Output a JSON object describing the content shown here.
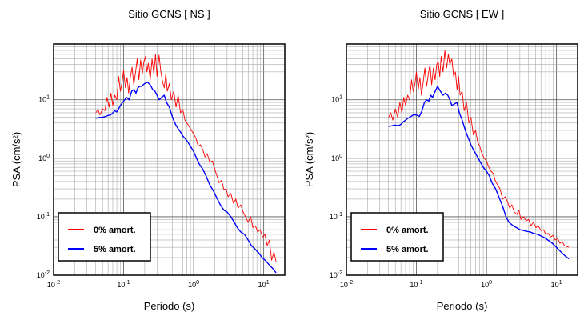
{
  "chart_data": [
    {
      "type": "line",
      "title": "Sitio GCNS [ NS ]",
      "xlabel": "Periodo (s)",
      "ylabel": "PSA (cm/s²)",
      "x_scale": "log",
      "y_scale": "log",
      "xlim": [
        0.01,
        20
      ],
      "ylim": [
        0.01,
        90
      ],
      "grid": true,
      "legend_position": "bottom-left",
      "x_ticks": [
        {
          "base": "10",
          "exp": "-2"
        },
        {
          "base": "10",
          "exp": "-1"
        },
        {
          "base": "10",
          "exp": "0"
        },
        {
          "base": "10",
          "exp": "1"
        }
      ],
      "y_ticks": [
        {
          "base": "10",
          "exp": "-2"
        },
        {
          "base": "10",
          "exp": "-1"
        },
        {
          "base": "10",
          "exp": "0"
        },
        {
          "base": "10",
          "exp": "1"
        }
      ],
      "series": [
        {
          "name": "0% amort.",
          "color": "#ff0000",
          "x": [
            0.04,
            0.043,
            0.046,
            0.05,
            0.054,
            0.058,
            0.062,
            0.066,
            0.07,
            0.075,
            0.08,
            0.085,
            0.09,
            0.095,
            0.1,
            0.106,
            0.112,
            0.118,
            0.125,
            0.132,
            0.14,
            0.148,
            0.156,
            0.165,
            0.175,
            0.185,
            0.195,
            0.205,
            0.215,
            0.225,
            0.24,
            0.255,
            0.27,
            0.285,
            0.3,
            0.32,
            0.34,
            0.36,
            0.38,
            0.4,
            0.42,
            0.45,
            0.48,
            0.52,
            0.56,
            0.6,
            0.65,
            0.7,
            0.75,
            0.8,
            0.86,
            0.93,
            1.0,
            1.08,
            1.16,
            1.25,
            1.35,
            1.45,
            1.56,
            1.7,
            1.85,
            2.0,
            2.15,
            2.3,
            2.5,
            2.7,
            2.9,
            3.1,
            3.4,
            3.7,
            4.0,
            4.3,
            4.7,
            5.1,
            5.5,
            6.0,
            6.5,
            7.0,
            7.6,
            8.2,
            8.9,
            9.6,
            10.4,
            11.2,
            12.0,
            13.0,
            14.0,
            15.0
          ],
          "y": [
            6,
            6.8,
            5.5,
            7,
            6.5,
            11,
            7.5,
            13,
            8,
            12,
            10,
            25,
            14,
            20,
            32,
            16,
            24,
            13,
            25,
            36,
            18,
            30,
            50,
            22,
            48,
            28,
            45,
            55,
            30,
            42,
            22,
            50,
            28,
            60,
            25,
            58,
            30,
            20,
            16,
            28,
            14,
            19,
            10,
            14,
            7.5,
            12,
            6,
            6.8,
            4.5,
            4,
            3.5,
            3,
            2.6,
            2.2,
            1.6,
            1.7,
            1.4,
            1.05,
            1.2,
            0.85,
            0.9,
            0.65,
            0.5,
            0.38,
            0.42,
            0.29,
            0.3,
            0.22,
            0.25,
            0.17,
            0.2,
            0.14,
            0.16,
            0.12,
            0.1,
            0.08,
            0.1,
            0.065,
            0.07,
            0.055,
            0.06,
            0.045,
            0.05,
            0.032,
            0.04,
            0.018,
            0.025,
            0.017
          ]
        },
        {
          "name": "5% amort.",
          "color": "#0000ff",
          "x": [
            0.04,
            0.045,
            0.05,
            0.055,
            0.06,
            0.065,
            0.07,
            0.075,
            0.08,
            0.09,
            0.1,
            0.11,
            0.12,
            0.13,
            0.14,
            0.15,
            0.16,
            0.17,
            0.18,
            0.2,
            0.22,
            0.24,
            0.26,
            0.28,
            0.3,
            0.32,
            0.35,
            0.38,
            0.41,
            0.45,
            0.5,
            0.55,
            0.6,
            0.65,
            0.7,
            0.8,
            0.9,
            1.0,
            1.1,
            1.2,
            1.35,
            1.5,
            1.7,
            1.9,
            2.1,
            2.4,
            2.7,
            3.0,
            3.4,
            3.8,
            4.2,
            4.7,
            5.3,
            6.0,
            6.7,
            7.5,
            8.5,
            9.5,
            10.5,
            12.0,
            13.5,
            15.0
          ],
          "y": [
            4.8,
            5,
            5,
            5.2,
            5.4,
            5.5,
            6,
            6.5,
            6.2,
            8,
            9.5,
            11,
            10,
            14,
            15,
            13,
            16,
            17,
            17,
            19,
            20,
            18,
            15,
            14,
            12,
            10,
            11,
            12,
            9,
            7.5,
            5,
            3.8,
            3.2,
            2.8,
            2.4,
            2,
            1.6,
            1.3,
            1.0,
            0.8,
            0.65,
            0.5,
            0.35,
            0.28,
            0.22,
            0.16,
            0.13,
            0.12,
            0.1,
            0.08,
            0.065,
            0.055,
            0.05,
            0.04,
            0.032,
            0.028,
            0.024,
            0.02,
            0.018,
            0.015,
            0.013,
            0.011
          ]
        }
      ]
    },
    {
      "type": "line",
      "title": "Sitio GCNS [ EW ]",
      "xlabel": "Periodo (s)",
      "ylabel": "PSA (cm/s²)",
      "x_scale": "log",
      "y_scale": "log",
      "xlim": [
        0.01,
        20
      ],
      "ylim": [
        0.01,
        90
      ],
      "grid": true,
      "legend_position": "bottom-left",
      "x_ticks": [
        {
          "base": "10",
          "exp": "-2"
        },
        {
          "base": "10",
          "exp": "-1"
        },
        {
          "base": "10",
          "exp": "0"
        },
        {
          "base": "10",
          "exp": "1"
        }
      ],
      "y_ticks": [
        {
          "base": "10",
          "exp": "-2"
        },
        {
          "base": "10",
          "exp": "-1"
        },
        {
          "base": "10",
          "exp": "0"
        },
        {
          "base": "10",
          "exp": "1"
        }
      ],
      "series": [
        {
          "name": "0% amort.",
          "color": "#ff0000",
          "x": [
            0.04,
            0.043,
            0.046,
            0.05,
            0.054,
            0.058,
            0.062,
            0.066,
            0.07,
            0.075,
            0.08,
            0.085,
            0.09,
            0.095,
            0.1,
            0.106,
            0.112,
            0.118,
            0.125,
            0.132,
            0.14,
            0.148,
            0.156,
            0.165,
            0.175,
            0.185,
            0.195,
            0.205,
            0.215,
            0.225,
            0.24,
            0.255,
            0.27,
            0.285,
            0.3,
            0.32,
            0.34,
            0.36,
            0.38,
            0.4,
            0.42,
            0.45,
            0.48,
            0.52,
            0.56,
            0.6,
            0.65,
            0.7,
            0.75,
            0.8,
            0.86,
            0.93,
            1.0,
            1.08,
            1.16,
            1.25,
            1.35,
            1.45,
            1.56,
            1.7,
            1.85,
            2.0,
            2.15,
            2.3,
            2.5,
            2.7,
            2.9,
            3.1,
            3.4,
            3.7,
            4.0,
            4.3,
            4.7,
            5.1,
            5.5,
            6.0,
            6.5,
            7.0,
            7.6,
            8.2,
            8.9,
            9.6,
            10.4,
            11.2,
            12.0,
            13.0,
            14.0,
            15.0
          ],
          "y": [
            5,
            6,
            4.5,
            7,
            5,
            9,
            6,
            11,
            8,
            12,
            10,
            22,
            14,
            18,
            30,
            15,
            24,
            12,
            20,
            35,
            17,
            28,
            40,
            18,
            35,
            22,
            40,
            45,
            25,
            55,
            30,
            70,
            35,
            60,
            40,
            50,
            25,
            30,
            15,
            25,
            12,
            14,
            6.5,
            9,
            4,
            5,
            2.5,
            3,
            1.9,
            1.6,
            1.2,
            1.0,
            0.9,
            0.7,
            0.6,
            0.55,
            0.4,
            0.35,
            0.3,
            0.2,
            0.22,
            0.18,
            0.14,
            0.16,
            0.12,
            0.11,
            0.13,
            0.09,
            0.1,
            0.085,
            0.09,
            0.07,
            0.08,
            0.065,
            0.07,
            0.058,
            0.06,
            0.05,
            0.052,
            0.045,
            0.048,
            0.04,
            0.042,
            0.035,
            0.038,
            0.032,
            0.031,
            0.03
          ]
        },
        {
          "name": "5% amort.",
          "color": "#0000ff",
          "x": [
            0.04,
            0.045,
            0.05,
            0.055,
            0.06,
            0.065,
            0.07,
            0.075,
            0.08,
            0.09,
            0.1,
            0.11,
            0.12,
            0.13,
            0.14,
            0.15,
            0.16,
            0.17,
            0.18,
            0.2,
            0.22,
            0.24,
            0.26,
            0.28,
            0.3,
            0.32,
            0.35,
            0.38,
            0.41,
            0.45,
            0.5,
            0.55,
            0.6,
            0.65,
            0.7,
            0.8,
            0.9,
            1.0,
            1.1,
            1.2,
            1.35,
            1.5,
            1.7,
            1.9,
            2.1,
            2.4,
            2.7,
            3.0,
            3.4,
            3.8,
            4.2,
            4.7,
            5.3,
            6.0,
            6.7,
            7.5,
            8.5,
            9.5,
            10.5,
            12.0,
            13.5,
            15.0
          ],
          "y": [
            3.5,
            3.6,
            3.7,
            3.6,
            3.8,
            4.2,
            4.5,
            4.8,
            5,
            5.5,
            5.5,
            5.2,
            6.5,
            9,
            10,
            9.5,
            12,
            11,
            13,
            17,
            14,
            12,
            13,
            12,
            10,
            8,
            8.5,
            9,
            6,
            4.5,
            3,
            2.2,
            1.7,
            1.4,
            1.2,
            0.9,
            0.7,
            0.6,
            0.5,
            0.38,
            0.3,
            0.22,
            0.15,
            0.1,
            0.08,
            0.07,
            0.065,
            0.06,
            0.058,
            0.056,
            0.055,
            0.052,
            0.05,
            0.047,
            0.044,
            0.04,
            0.036,
            0.032,
            0.028,
            0.024,
            0.021,
            0.019
          ]
        }
      ]
    }
  ]
}
